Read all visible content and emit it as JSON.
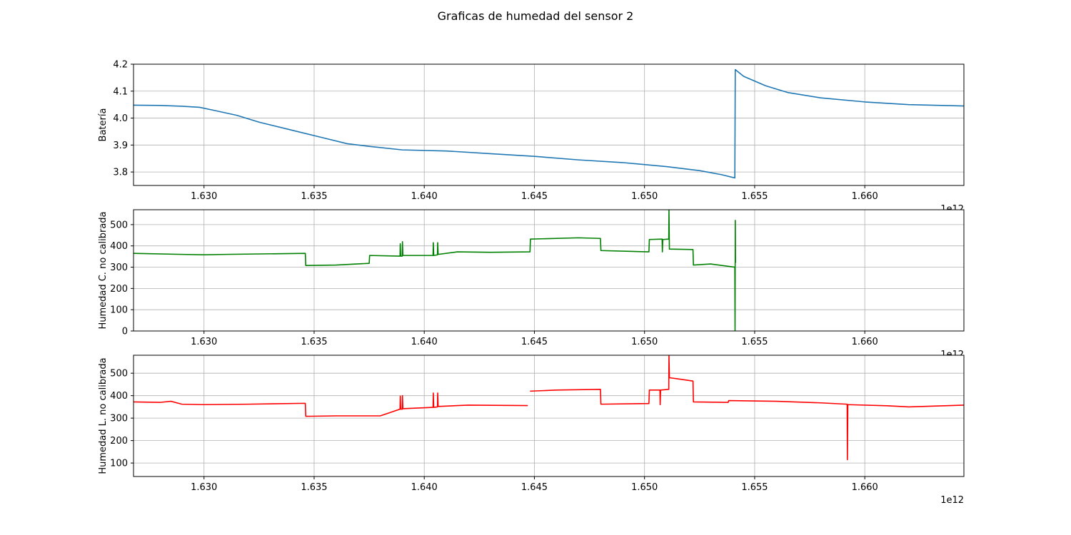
{
  "figure": {
    "title": "Graficas de humedad del sensor 2",
    "x_offset_label": "1e12"
  },
  "chart_data": [
    {
      "type": "line",
      "ylabel": "Batería",
      "xlim": [
        1.6268,
        1.6645
      ],
      "ylim": [
        3.75,
        4.2
      ],
      "x_ticks": [
        1.63,
        1.635,
        1.64,
        1.645,
        1.65,
        1.655,
        1.66
      ],
      "x_tick_labels": [
        "1.630",
        "1.635",
        "1.640",
        "1.645",
        "1.650",
        "1.655",
        "1.660"
      ],
      "y_ticks": [
        3.8,
        3.9,
        4.0,
        4.1,
        4.2
      ],
      "y_tick_labels": [
        "3.8",
        "3.9",
        "4.0",
        "4.1",
        "4.2"
      ],
      "grid": true,
      "series": [
        {
          "color": "#1f77b4",
          "x": [
            1.6268,
            1.628,
            1.629,
            1.6298,
            1.6305,
            1.6315,
            1.6325,
            1.634,
            1.6355,
            1.6365,
            1.6375,
            1.639,
            1.641,
            1.643,
            1.645,
            1.647,
            1.649,
            1.651,
            1.6525,
            1.6535,
            1.6541,
            1.65412,
            1.6545,
            1.6555,
            1.6565,
            1.658,
            1.66,
            1.662,
            1.6645
          ],
          "y": [
            4.048,
            4.047,
            4.044,
            4.04,
            4.028,
            4.01,
            3.985,
            3.955,
            3.925,
            3.905,
            3.895,
            3.882,
            3.878,
            3.868,
            3.858,
            3.845,
            3.835,
            3.82,
            3.805,
            3.79,
            3.778,
            4.18,
            4.155,
            4.12,
            4.095,
            4.075,
            4.06,
            4.05,
            4.045
          ]
        }
      ]
    },
    {
      "type": "line",
      "ylabel": "Humedad C. no calibrada",
      "xlim": [
        1.6268,
        1.6645
      ],
      "ylim": [
        0,
        570
      ],
      "x_ticks": [
        1.63,
        1.635,
        1.64,
        1.645,
        1.65,
        1.655,
        1.66
      ],
      "x_tick_labels": [
        "1.630",
        "1.635",
        "1.640",
        "1.645",
        "1.650",
        "1.655",
        "1.660"
      ],
      "y_ticks": [
        0,
        100,
        200,
        300,
        400,
        500
      ],
      "y_tick_labels": [
        "0",
        "100",
        "200",
        "300",
        "400",
        "500"
      ],
      "grid": true,
      "series": [
        {
          "color": "#008000",
          "x": [
            1.6268,
            1.629,
            1.63,
            1.631,
            1.6346,
            1.63462,
            1.636,
            1.6375,
            1.63752,
            1.6389,
            1.63891,
            1.63893,
            1.639,
            1.63901,
            1.63903,
            1.6404,
            1.64041,
            1.64043,
            1.6406,
            1.64061,
            1.64063,
            1.6415,
            1.643,
            1.6448,
            1.64482,
            1.647,
            1.648,
            1.64802,
            1.6502,
            1.65022,
            1.6508,
            1.65081,
            1.65083,
            1.6511,
            1.65111,
            1.65113,
            1.6522,
            1.65222,
            1.653,
            1.6541,
            1.65411,
            1.65412,
            1.65413
          ],
          "y": [
            365,
            360,
            358,
            360,
            365,
            308,
            310,
            318,
            355,
            352,
            410,
            352,
            352,
            420,
            355,
            355,
            415,
            355,
            358,
            415,
            360,
            372,
            370,
            372,
            432,
            438,
            435,
            378,
            372,
            430,
            432,
            372,
            430,
            432,
            570,
            385,
            383,
            310,
            315,
            300,
            0,
            520,
            320
          ]
        }
      ]
    },
    {
      "type": "line",
      "ylabel": "Humedad L. no calibrada",
      "xlim": [
        1.6268,
        1.6645
      ],
      "ylim": [
        40,
        580
      ],
      "x_ticks": [
        1.63,
        1.635,
        1.64,
        1.645,
        1.65,
        1.655,
        1.66
      ],
      "x_tick_labels": [
        "1.630",
        "1.635",
        "1.640",
        "1.645",
        "1.650",
        "1.655",
        "1.660"
      ],
      "y_ticks": [
        100,
        200,
        300,
        400,
        500
      ],
      "y_tick_labels": [
        "100",
        "200",
        "300",
        "400",
        "500"
      ],
      "grid": true,
      "series": [
        {
          "color": "#ff0000",
          "x": [
            1.6268,
            1.628,
            1.6285,
            1.629,
            1.63,
            1.632,
            1.6346,
            1.63462,
            1.636,
            1.638,
            1.6386,
            1.6389,
            1.63891,
            1.63893,
            1.639,
            1.63901,
            1.63903,
            1.6404,
            1.64041,
            1.64043,
            1.6406,
            1.64061,
            1.64063,
            1.642,
            1.6447
          ],
          "y": [
            372,
            370,
            375,
            362,
            360,
            362,
            366,
            308,
            310,
            310,
            330,
            340,
            398,
            340,
            340,
            400,
            342,
            348,
            412,
            348,
            350,
            412,
            352,
            358,
            356
          ]
        },
        {
          "color": "#ff0000",
          "x": [
            1.6448,
            1.646,
            1.648,
            1.64802,
            1.6502,
            1.65022,
            1.6507,
            1.65071,
            1.65073,
            1.6511,
            1.65111,
            1.65113,
            1.6515,
            1.6522,
            1.65222,
            1.6538,
            1.65382,
            1.656,
            1.658,
            1.6592,
            1.65921,
            1.65923,
            1.661,
            1.662,
            1.6645
          ],
          "y": [
            420,
            425,
            428,
            362,
            365,
            425,
            425,
            360,
            425,
            428,
            578,
            480,
            475,
            465,
            372,
            370,
            378,
            375,
            368,
            362,
            115,
            360,
            355,
            350,
            358
          ]
        }
      ]
    }
  ]
}
